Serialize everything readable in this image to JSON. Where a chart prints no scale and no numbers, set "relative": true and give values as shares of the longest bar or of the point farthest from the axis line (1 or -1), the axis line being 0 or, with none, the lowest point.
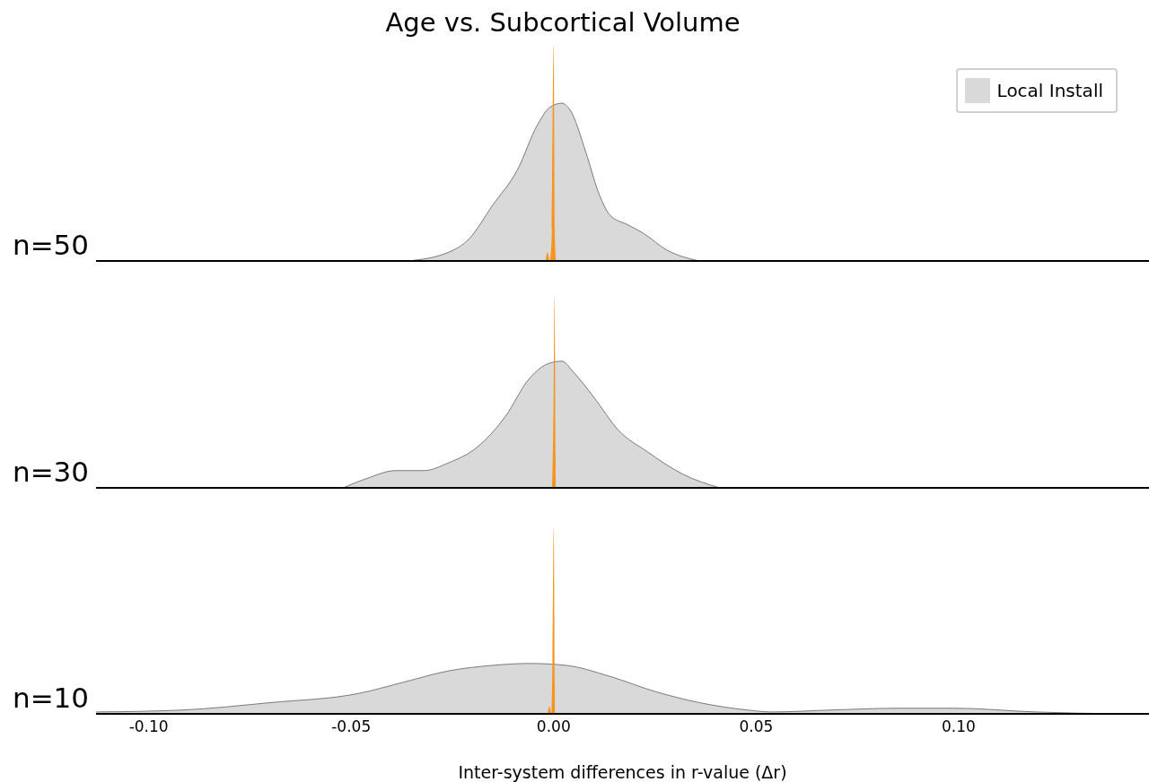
{
  "chart_data": [
    {
      "type": "area",
      "title": "Age vs. Subcortical Volume",
      "ylabel": "n=50",
      "relative": true,
      "legend": "top right",
      "tick_labels": false,
      "xlim": [
        -0.113,
        0.147
      ],
      "series": [
        {
          "name": "Local Install",
          "color": "#d9d9d9",
          "x": [
            -0.036,
            -0.026,
            -0.021,
            -0.015,
            -0.009,
            -0.004,
            -0.001,
            0.002,
            0.004,
            0.008,
            0.011,
            0.014,
            0.018,
            0.022,
            0.028,
            0.036
          ],
          "values": [
            0,
            0.04,
            0.1,
            0.26,
            0.42,
            0.63,
            0.71,
            0.73,
            0.7,
            0.5,
            0.32,
            0.21,
            0.17,
            0.13,
            0.05,
            0
          ]
        },
        {
          "color": "#f7941d",
          "x": [
            -0.002,
            -0.0015,
            -0.001,
            -0.0005,
            0,
            0.0003,
            0.0006
          ],
          "values": [
            0,
            0.04,
            0,
            0.1,
            1,
            0.1,
            0
          ]
        }
      ]
    },
    {
      "type": "area",
      "ylabel": "n=30",
      "relative": true,
      "tick_labels": false,
      "xlim": [
        -0.113,
        0.147
      ],
      "series": [
        {
          "color": "#d9d9d9",
          "x": [
            -0.052,
            -0.046,
            -0.039,
            -0.032,
            -0.026,
            -0.019,
            -0.012,
            -0.006,
            -0.001,
            0.002,
            0.005,
            0.01,
            0.016,
            0.023,
            0.032,
            0.041
          ],
          "values": [
            0,
            0.05,
            0.09,
            0.09,
            0.13,
            0.21,
            0.37,
            0.57,
            0.65,
            0.66,
            0.6,
            0.47,
            0.3,
            0.19,
            0.07,
            0
          ]
        },
        {
          "color": "#f7941d",
          "x": [
            -0.0004,
            0,
            0.0002,
            0.0005
          ],
          "values": [
            0,
            0.5,
            1,
            0
          ]
        }
      ]
    },
    {
      "type": "area",
      "ylabel": "n=10",
      "xlabel": "Inter-system differences in r-value (Δr)",
      "relative": true,
      "tick_labels": "x",
      "xlim": [
        -0.113,
        0.147
      ],
      "xticks": [
        {
          "value": -0.1,
          "label": "-0.10"
        },
        {
          "value": -0.05,
          "label": "-0.05"
        },
        {
          "value": 0,
          "label": "0.00"
        },
        {
          "value": 0.05,
          "label": "0.05"
        },
        {
          "value": 0.1,
          "label": "0.10"
        }
      ],
      "series": [
        {
          "color": "#d9d9d9",
          "x": [
            -0.113,
            -0.092,
            -0.07,
            -0.048,
            -0.037,
            -0.026,
            -0.015,
            -0.006,
            0.003,
            0.014,
            0.025,
            0.036,
            0.048,
            0.054,
            0.068,
            0.085,
            0.099,
            0.119,
            0.139
          ],
          "values": [
            0.01,
            0.02,
            0.06,
            0.11,
            0.17,
            0.23,
            0.26,
            0.27,
            0.26,
            0.2,
            0.12,
            0.06,
            0.02,
            0.01,
            0.02,
            0.03,
            0.03,
            0.01,
            0
          ]
        },
        {
          "color": "#f7941d",
          "x": [
            -0.0015,
            -0.001,
            -0.0006,
            -0.0003,
            0,
            0.0003
          ],
          "values": [
            0,
            0.04,
            0,
            0.3,
            1,
            0
          ]
        }
      ]
    }
  ]
}
